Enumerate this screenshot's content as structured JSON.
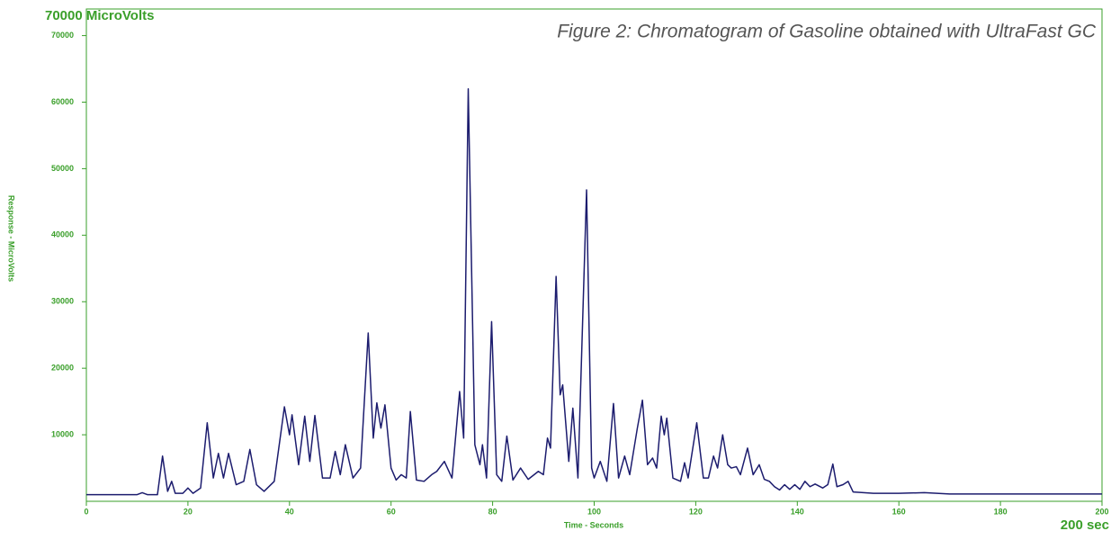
{
  "chart_data": {
    "type": "line",
    "title": "Figure 2: Chromatogram of Gasoline obtained with UltraFast GC",
    "x_label": "Time - Seconds",
    "y_label": "Response - MicroVolts",
    "y_max_label": "70000 MicroVolts",
    "x_max_label": "200 sec",
    "color": "#1c1c6e",
    "axis_color": "#3a9f2a",
    "xlim": [
      0,
      200
    ],
    "xticks": [
      0,
      20,
      40,
      60,
      80,
      100,
      120,
      140,
      160,
      180,
      200
    ],
    "ylim": [
      0,
      74000
    ],
    "yticks": [
      10000,
      20000,
      30000,
      40000,
      50000,
      60000,
      70000
    ],
    "x": [
      0,
      10,
      11,
      12,
      14,
      15,
      16,
      16.8,
      17.5,
      19,
      20,
      21,
      22.5,
      23.8,
      25,
      26,
      27,
      28,
      29.5,
      31,
      32.2,
      33.5,
      35,
      37,
      39,
      40,
      40.5,
      41.8,
      43,
      44,
      45,
      46.5,
      48,
      49,
      50,
      51,
      52.5,
      54,
      55.5,
      56.5,
      57.2,
      58,
      58.8,
      60,
      61,
      62,
      63,
      63.8,
      65,
      66.5,
      68,
      69,
      70.5,
      72,
      73.5,
      74.3,
      75.2,
      76.5,
      77.5,
      78,
      78.8,
      79.8,
      80.8,
      81.8,
      82.8,
      84,
      85.5,
      87,
      89,
      90,
      90.8,
      91.4,
      92.5,
      93.3,
      93.8,
      95,
      95.8,
      96.8,
      98.5,
      99.5,
      100,
      101.2,
      102.5,
      103.8,
      104.8,
      106,
      107,
      108.5,
      109.5,
      110.5,
      111.5,
      112.3,
      113.2,
      113.8,
      114.3,
      115.5,
      117,
      117.8,
      118.5,
      120.2,
      121.5,
      122.5,
      123.5,
      124.3,
      125.3,
      126.3,
      127,
      128,
      128.8,
      130.2,
      131.3,
      132.5,
      133.5,
      134.5,
      135.5,
      136.5,
      137.5,
      138.5,
      139.5,
      140.5,
      141.5,
      142.5,
      143.5,
      145,
      146,
      147,
      147.8,
      149,
      150,
      151,
      155,
      160,
      165,
      170,
      180,
      190,
      200
    ],
    "values": [
      1000,
      1000,
      1300,
      1000,
      1000,
      6800,
      1500,
      3000,
      1200,
      1200,
      2000,
      1200,
      2000,
      11800,
      3500,
      7200,
      3500,
      7200,
      2500,
      3000,
      7800,
      2500,
      1500,
      3000,
      14200,
      10000,
      13000,
      5500,
      12800,
      6000,
      12900,
      3500,
      3500,
      7500,
      4000,
      8500,
      3500,
      5000,
      25300,
      9500,
      14800,
      11000,
      14500,
      5000,
      3200,
      4000,
      3500,
      13500,
      3200,
      3000,
      4000,
      4500,
      6000,
      3500,
      16500,
      9500,
      62000,
      8500,
      5500,
      8500,
      3500,
      27000,
      4000,
      3000,
      9800,
      3200,
      5000,
      3300,
      4500,
      4000,
      9500,
      8000,
      33800,
      16000,
      17500,
      6000,
      14000,
      3500,
      46800,
      5000,
      3500,
      6000,
      3000,
      14700,
      3500,
      6800,
      4000,
      11000,
      15200,
      5500,
      6500,
      5000,
      12800,
      10000,
      12500,
      3500,
      3000,
      5800,
      3500,
      11800,
      3500,
      3500,
      6800,
      5000,
      10000,
      5500,
      5000,
      5200,
      4000,
      8000,
      4000,
      5500,
      3300,
      3000,
      2200,
      1700,
      2500,
      1800,
      2500,
      1800,
      3000,
      2200,
      2600,
      2000,
      2500,
      5600,
      2200,
      2500,
      3000,
      1400,
      1200,
      1200,
      1300,
      1100,
      1100,
      1100,
      1100
    ]
  }
}
